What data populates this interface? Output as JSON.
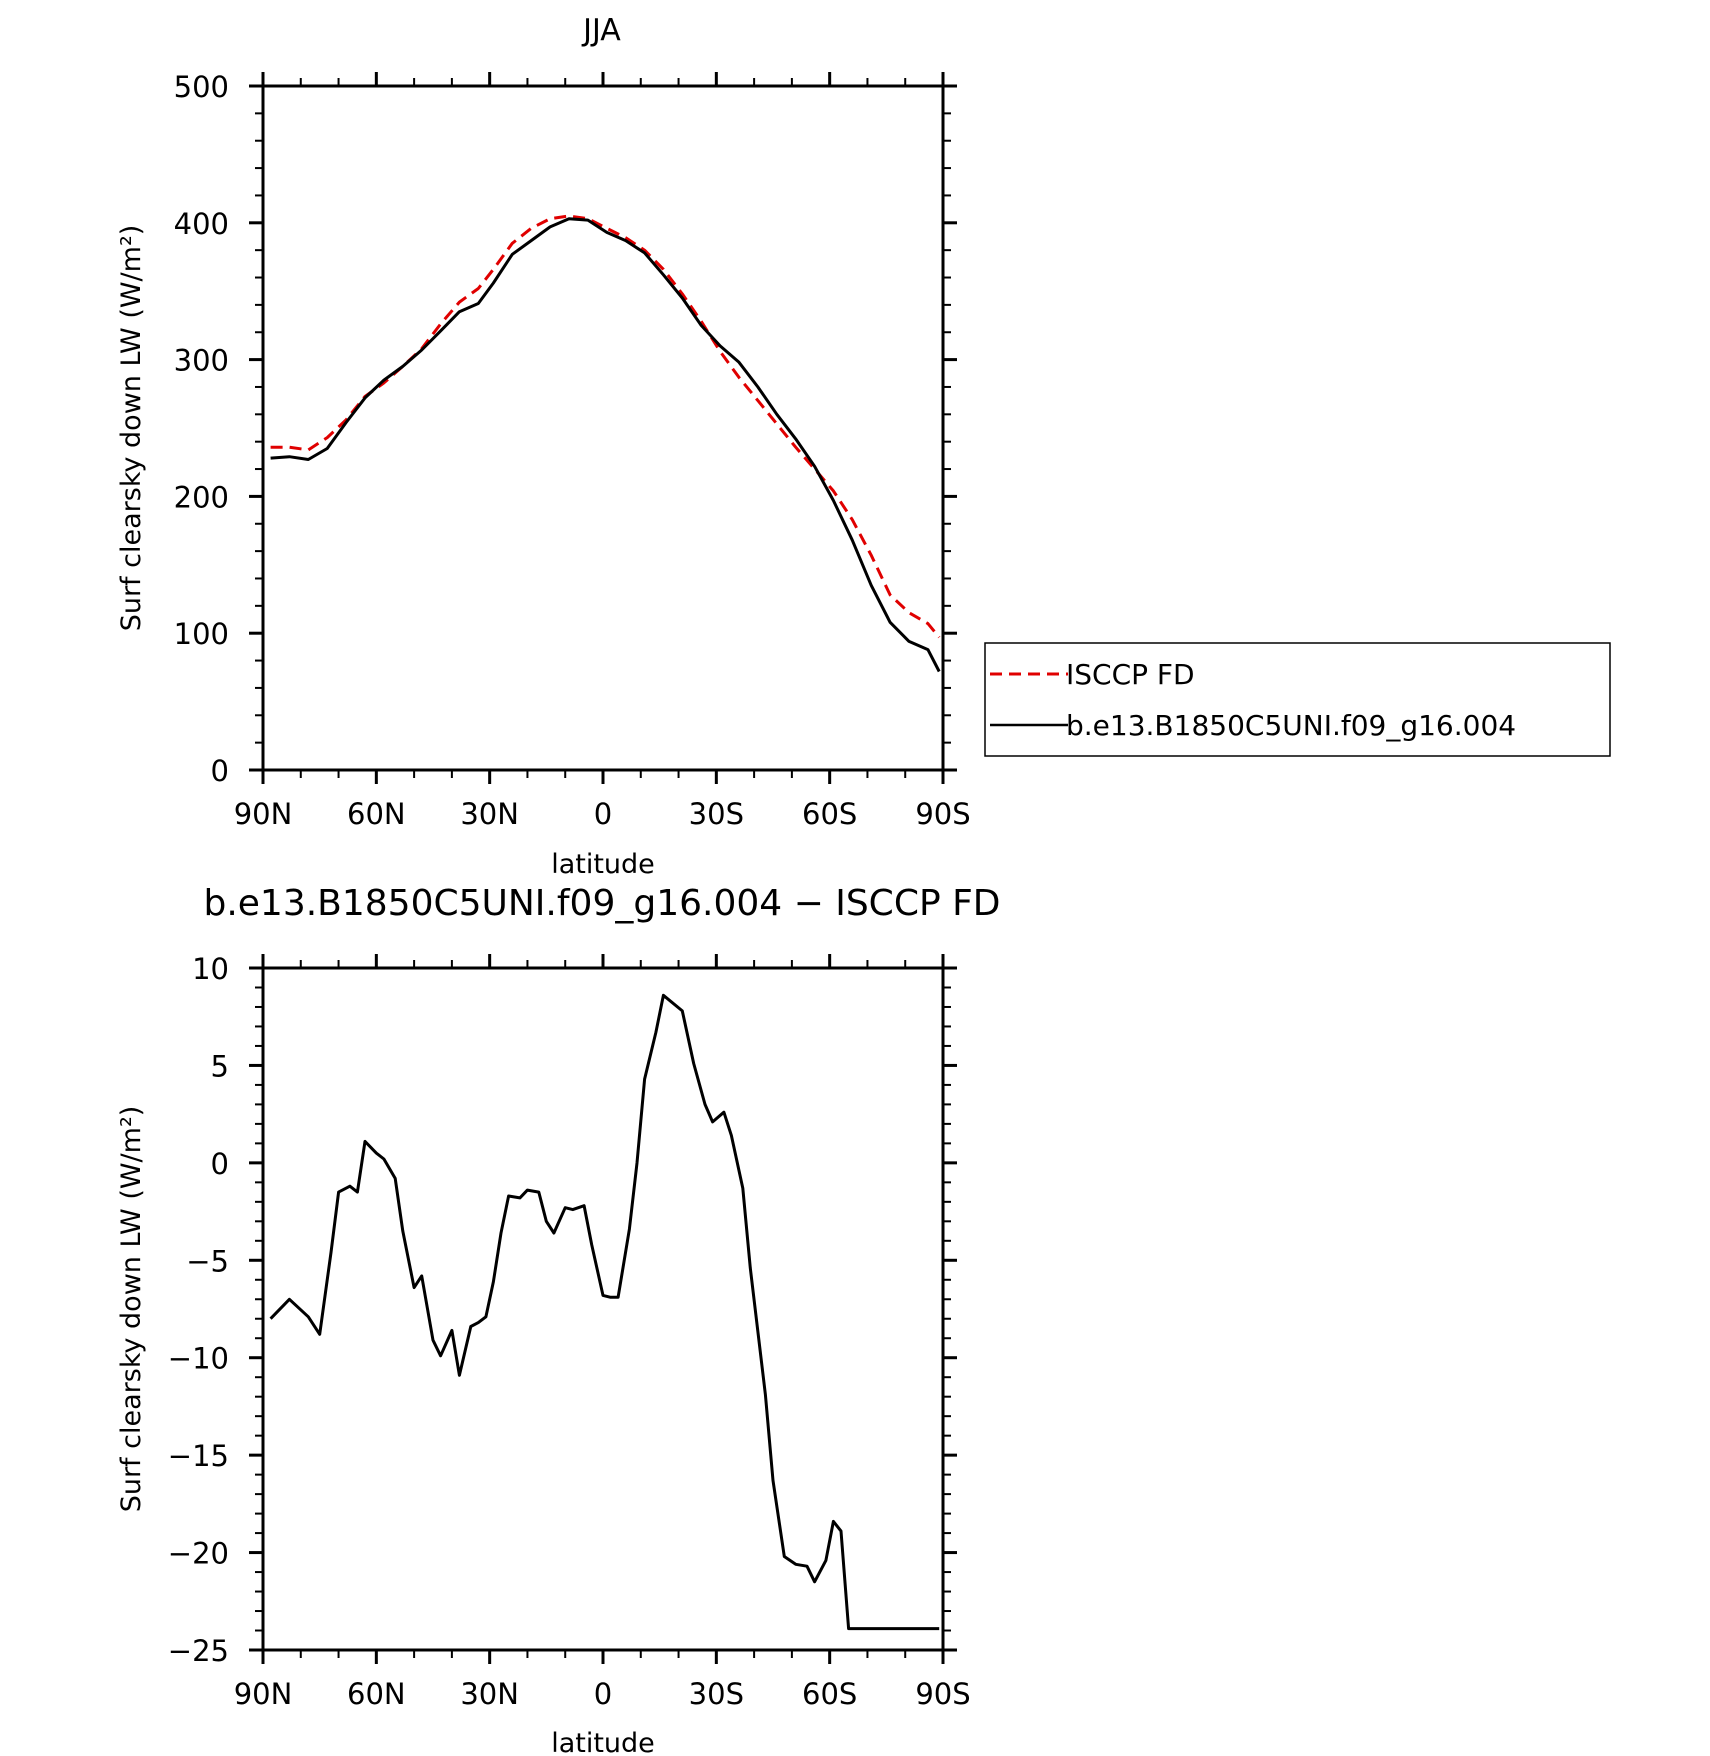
{
  "chart_data": [
    {
      "type": "line",
      "title": "JJA",
      "xlabel": "latitude",
      "ylabel": "Surf clearsky down LW (W/m²)",
      "ylim": [
        0,
        500
      ],
      "xlim": [
        90,
        -90
      ],
      "xticks": [
        90,
        60,
        30,
        0,
        -30,
        -60,
        -90
      ],
      "xtick_labels": [
        "90N",
        "60N",
        "30N",
        "0",
        "30S",
        "60S",
        "90S"
      ],
      "yticks": [
        0,
        100,
        200,
        300,
        400,
        500
      ],
      "ytick_labels": [
        "0",
        "100",
        "200",
        "300",
        "400",
        "500"
      ],
      "legend_position": "right",
      "series": [
        {
          "name": "ISCCP FD",
          "color": "#e00000",
          "dash": "dashed",
          "x": [
            88,
            83,
            78,
            73,
            68,
            63,
            58,
            53,
            48,
            43,
            38,
            33,
            29,
            24,
            19,
            14,
            9,
            4,
            -1,
            -6,
            -11,
            -16,
            -21,
            -26,
            -31,
            -36,
            -41,
            -46,
            -51,
            -56,
            -61,
            -66,
            -71,
            -76,
            -81,
            -86,
            -89
          ],
          "y": [
            236,
            236,
            234,
            243,
            256,
            273,
            283,
            295,
            308,
            326,
            342,
            352,
            366,
            385,
            396,
            403,
            405,
            403,
            396,
            389,
            380,
            366,
            348,
            328,
            306,
            287,
            270,
            253,
            236,
            220,
            204,
            183,
            157,
            128,
            115,
            107,
            97
          ]
        },
        {
          "name": "b.e13.B1850C5UNI.f09_g16.004",
          "color": "#000000",
          "dash": "solid",
          "x": [
            88,
            83,
            78,
            73,
            68,
            63,
            58,
            53,
            48,
            43,
            38,
            33,
            29,
            24,
            19,
            14,
            9,
            4,
            -1,
            -6,
            -11,
            -16,
            -21,
            -26,
            -31,
            -36,
            -41,
            -46,
            -51,
            -56,
            -61,
            -66,
            -71,
            -76,
            -81,
            -86,
            -89
          ],
          "y": [
            228,
            229,
            227,
            235,
            254,
            272,
            285,
            295,
            307,
            321,
            335,
            341,
            356,
            377,
            387,
            397,
            403,
            402,
            393,
            387,
            378,
            362,
            345,
            325,
            310,
            298,
            280,
            260,
            242,
            222,
            197,
            168,
            135,
            108,
            94,
            88,
            72
          ]
        }
      ]
    },
    {
      "type": "line",
      "title": "b.e13.B1850C5UNI.f09_g16.004 − ISCCP FD",
      "xlabel": "latitude",
      "ylabel": "Surf clearsky down LW (W/m²)",
      "ylim": [
        -25,
        10
      ],
      "xlim": [
        90,
        -90
      ],
      "xticks": [
        90,
        60,
        30,
        0,
        -30,
        -60,
        -90
      ],
      "xtick_labels": [
        "90N",
        "60N",
        "30N",
        "0",
        "30S",
        "60S",
        "90S"
      ],
      "yticks": [
        10,
        5,
        0,
        -5,
        -10,
        -15,
        -20,
        -25
      ],
      "ytick_labels": [
        "10",
        "5",
        "0",
        "−5",
        "−10",
        "−15",
        "−20",
        "−25"
      ],
      "series": [
        {
          "color": "#000000",
          "x": [
            88,
            83,
            78,
            75,
            72,
            70,
            67,
            65,
            63,
            60,
            58,
            55,
            53,
            50,
            48,
            45,
            43,
            40,
            38,
            35,
            33,
            31,
            29,
            27,
            25,
            22,
            20,
            17,
            15,
            13,
            10,
            8,
            5,
            3,
            0,
            -2,
            -4,
            -7,
            -9,
            -11,
            -14,
            -16,
            -21,
            -24,
            -27,
            -29,
            -32,
            -34,
            -37,
            -39,
            -43,
            -45,
            -48,
            -51,
            -54,
            -56,
            -59,
            -61,
            -63,
            -65,
            -68,
            -70,
            -72,
            -75,
            -77,
            -80,
            -82,
            -85,
            -87,
            -89
          ],
          "y": [
            -8,
            -7,
            -7.9,
            -8.8,
            -4.6,
            -1.5,
            -1.2,
            -1.5,
            1.1,
            0.5,
            0.2,
            -0.8,
            -3.5,
            -6.4,
            -5.8,
            -9.1,
            -9.9,
            -8.6,
            -10.9,
            -8.4,
            -8.2,
            -7.9,
            -6.1,
            -3.6,
            -1.7,
            -1.8,
            -1.4,
            -1.5,
            -3,
            -3.6,
            -2.3,
            -2.4,
            -2.2,
            -4.2,
            -6.8,
            -6.9,
            -6.9,
            -3.4,
            0,
            4.3,
            6.7,
            8.6,
            7.8,
            5.1,
            3,
            2.1,
            2.6,
            1.4,
            -1.3,
            -5.4,
            -11.9,
            -16.3,
            -20.2,
            -20.6,
            -20.7,
            -21.5,
            -20.4,
            -18.4,
            -18.9,
            -23.9,
            -23.9,
            -23.9,
            -23.9,
            -23.9,
            -23.9,
            -23.9,
            -23.9,
            -23.9,
            -23.9,
            -23.9
          ]
        }
      ]
    }
  ],
  "legend": {
    "items": [
      {
        "label": "ISCCP FD",
        "color": "#e00000",
        "dash": "dashed"
      },
      {
        "label": "b.e13.B1850C5UNI.f09_g16.004",
        "color": "#000000",
        "dash": "solid"
      }
    ]
  }
}
